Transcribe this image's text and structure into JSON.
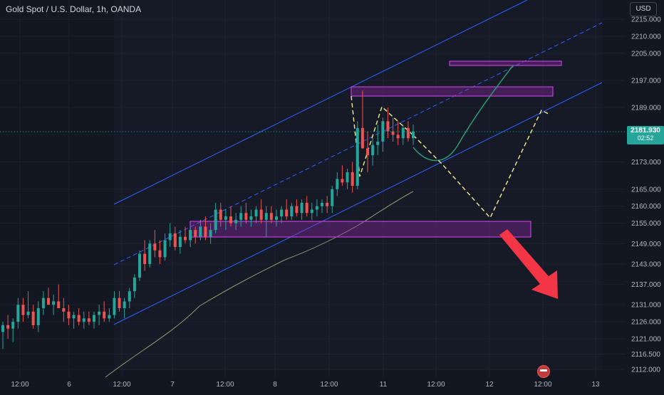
{
  "header": {
    "title": "Gold Spot / U.S. Dollar, 1h, OANDA"
  },
  "toolbar": {
    "currency": "USD"
  },
  "price_badge": {
    "price": "2181.930",
    "countdown": "02:52"
  },
  "colors": {
    "background": "#131722",
    "up": "#26a69a",
    "down": "#ef5350",
    "channel": "#2962ff",
    "zone": "#9c27b0",
    "projection": "#e6e08a",
    "path_up": "#2e9a72",
    "arrow": "#f23645",
    "ma": "#8b9a6a"
  },
  "chart_data": {
    "type": "candlestick",
    "title": "Gold Spot / U.S. Dollar, 1h, OANDA",
    "ylim": [
      2110,
      2220
    ],
    "y_ticks": [
      2112,
      2116.5,
      2121,
      2126,
      2131,
      2137,
      2143,
      2149,
      2155,
      2160,
      2165,
      2173,
      2181.93,
      2189,
      2197,
      2205,
      2210,
      2215
    ],
    "y_tick_labels": [
      "2112.000",
      "2116.500",
      "2121.000",
      "2126.000",
      "2131.000",
      "2137.000",
      "2143.000",
      "2149.000",
      "2155.000",
      "2160.000",
      "2165.000",
      "2173.000",
      "2181.930",
      "2189.000",
      "2197.000",
      "2205.000",
      "2210.000",
      "2215.000"
    ],
    "x_tick_labels": [
      "12:00",
      "6",
      "12:00",
      "7",
      "12:00",
      "8",
      "12:00",
      "11",
      "12:00",
      "12",
      "12:00",
      "13"
    ],
    "current_price": 2181.93,
    "candles": [
      [
        2123,
        2126,
        2118,
        2125
      ],
      [
        2125,
        2128,
        2121,
        2124
      ],
      [
        2124,
        2127,
        2120,
        2126
      ],
      [
        2126,
        2133,
        2124,
        2131
      ],
      [
        2131,
        2133,
        2126,
        2128
      ],
      [
        2128,
        2135,
        2127,
        2129
      ],
      [
        2129,
        2131,
        2124,
        2125
      ],
      [
        2125,
        2132,
        2123,
        2130
      ],
      [
        2130,
        2135,
        2128,
        2133
      ],
      [
        2133,
        2136,
        2131,
        2131
      ],
      [
        2131,
        2134,
        2128,
        2132
      ],
      [
        2132,
        2137,
        2130,
        2130
      ],
      [
        2130,
        2133,
        2126,
        2129
      ],
      [
        2129,
        2131,
        2125,
        2127
      ],
      [
        2127,
        2129,
        2124,
        2128
      ],
      [
        2128,
        2130,
        2125,
        2126
      ],
      [
        2126,
        2129,
        2124,
        2127
      ],
      [
        2127,
        2129,
        2125,
        2126
      ],
      [
        2126,
        2129,
        2124,
        2128
      ],
      [
        2128,
        2131,
        2125,
        2129
      ],
      [
        2129,
        2132,
        2126,
        2127
      ],
      [
        2127,
        2130,
        2126,
        2128
      ],
      [
        2128,
        2135,
        2127,
        2133
      ],
      [
        2133,
        2135,
        2129,
        2130
      ],
      [
        2130,
        2133,
        2127,
        2132
      ],
      [
        2132,
        2136,
        2130,
        2135
      ],
      [
        2135,
        2140,
        2133,
        2139
      ],
      [
        2139,
        2147,
        2138,
        2146
      ],
      [
        2146,
        2150,
        2141,
        2143
      ],
      [
        2143,
        2150,
        2142,
        2149
      ],
      [
        2149,
        2153,
        2145,
        2147
      ],
      [
        2147,
        2150,
        2143,
        2145
      ],
      [
        2145,
        2152,
        2144,
        2150
      ],
      [
        2150,
        2155,
        2148,
        2152
      ],
      [
        2152,
        2154,
        2147,
        2148
      ],
      [
        2148,
        2153,
        2146,
        2151
      ],
      [
        2151,
        2154,
        2149,
        2150
      ],
      [
        2150,
        2154,
        2148,
        2153
      ],
      [
        2153,
        2154,
        2149,
        2151
      ],
      [
        2151,
        2156,
        2150,
        2154
      ],
      [
        2154,
        2157,
        2150,
        2151
      ],
      [
        2151,
        2155,
        2149,
        2153
      ],
      [
        2153,
        2161,
        2152,
        2159
      ],
      [
        2159,
        2161,
        2154,
        2156
      ],
      [
        2156,
        2159,
        2153,
        2157
      ],
      [
        2157,
        2160,
        2154,
        2155
      ],
      [
        2155,
        2158,
        2153,
        2156
      ],
      [
        2156,
        2160,
        2154,
        2158
      ],
      [
        2158,
        2161,
        2155,
        2156
      ],
      [
        2156,
        2159,
        2154,
        2157
      ],
      [
        2157,
        2160,
        2155,
        2159
      ],
      [
        2159,
        2162,
        2155,
        2156
      ],
      [
        2156,
        2160,
        2151,
        2158
      ],
      [
        2158,
        2160,
        2155,
        2156
      ],
      [
        2156,
        2159,
        2154,
        2157
      ],
      [
        2157,
        2160,
        2155,
        2159
      ],
      [
        2159,
        2162,
        2156,
        2157
      ],
      [
        2157,
        2161,
        2156,
        2160
      ],
      [
        2160,
        2162,
        2157,
        2158
      ],
      [
        2158,
        2162,
        2156,
        2161
      ],
      [
        2161,
        2163,
        2157,
        2158
      ],
      [
        2158,
        2161,
        2156,
        2159
      ],
      [
        2159,
        2162,
        2157,
        2160
      ],
      [
        2160,
        2162,
        2158,
        2161
      ],
      [
        2161,
        2163,
        2158,
        2160
      ],
      [
        2160,
        2166,
        2158,
        2165
      ],
      [
        2165,
        2170,
        2163,
        2168
      ],
      [
        2168,
        2172,
        2166,
        2167
      ],
      [
        2167,
        2171,
        2165,
        2170
      ],
      [
        2170,
        2173,
        2164,
        2166
      ],
      [
        2166,
        2185,
        2165,
        2183
      ],
      [
        2183,
        2194,
        2177,
        2177
      ],
      [
        2177,
        2182,
        2170,
        2175
      ],
      [
        2175,
        2180,
        2172,
        2178
      ],
      [
        2178,
        2184,
        2175,
        2179
      ],
      [
        2179,
        2186,
        2176,
        2185
      ],
      [
        2185,
        2189,
        2180,
        2182
      ],
      [
        2182,
        2186,
        2179,
        2181
      ],
      [
        2181,
        2185,
        2178,
        2180
      ],
      [
        2180,
        2184,
        2178,
        2183
      ],
      [
        2183,
        2185,
        2179,
        2180
      ],
      [
        2180,
        2184,
        2178,
        2182
      ]
    ]
  }
}
